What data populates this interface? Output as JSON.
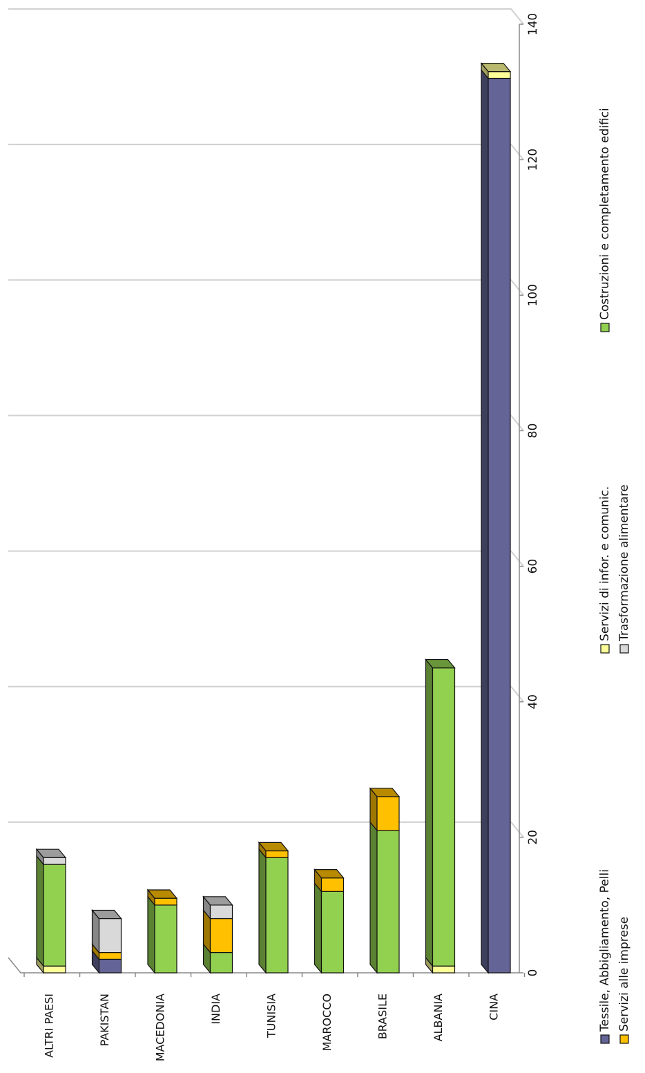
{
  "chart_data": {
    "type": "bar",
    "orientation": "horizontal-3d-stacked",
    "title": "",
    "xlabel": "",
    "ylabel": "",
    "xlim": [
      0,
      140
    ],
    "ticks": [
      "0",
      "20",
      "40",
      "60",
      "80",
      "100",
      "120",
      "140"
    ],
    "tick_values": [
      0,
      20,
      40,
      60,
      80,
      100,
      120,
      140
    ],
    "categories": [
      "ALTRI PAESI",
      "PAKISTAN",
      "MACEDONIA",
      "INDIA",
      "TUNISIA",
      "MAROCCO",
      "BRASILE",
      "ALBANIA",
      "CINA"
    ],
    "series": [
      {
        "name": "Tessile, Abbigliamento, Pelli",
        "color": "#646496",
        "values": [
          0,
          2,
          0,
          0,
          0,
          0,
          0,
          0,
          132
        ]
      },
      {
        "name": "Servizi di infor. e comunic.",
        "color": "#ffff99",
        "values": [
          1,
          0,
          0,
          0,
          0,
          0,
          0,
          1,
          1
        ]
      },
      {
        "name": "Costruzioni e completamento edifici",
        "color": "#92d050",
        "values": [
          15,
          0,
          10,
          3,
          17,
          12,
          21,
          44,
          0
        ]
      },
      {
        "name": "Servizi alle imprese",
        "color": "#ffc000",
        "values": [
          0,
          1,
          1,
          5,
          1,
          2,
          5,
          0,
          0
        ]
      },
      {
        "name": "Trasformazione alimentare",
        "color": "#d9d9d9",
        "values": [
          1,
          5,
          0,
          2,
          0,
          0,
          0,
          0,
          0
        ]
      }
    ],
    "legend_position": "bottom",
    "grid": true
  }
}
